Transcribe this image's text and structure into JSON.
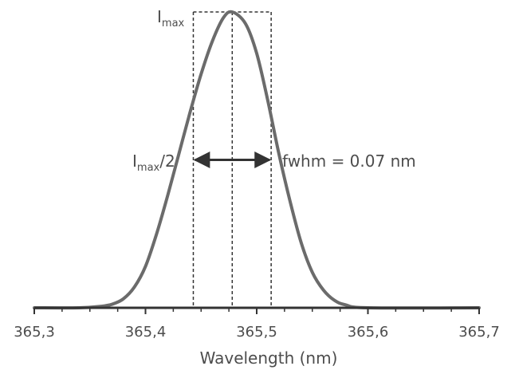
{
  "chart_data": {
    "type": "line",
    "title": "",
    "xlabel": "Wavelength (nm)",
    "ylabel": "",
    "xlim": [
      365.3,
      365.7
    ],
    "ylim": [
      0,
      1
    ],
    "x_ticks": [
      "365,3",
      "365,4",
      "365,5",
      "365,6",
      "365,7"
    ],
    "x_tick_values": [
      365.3,
      365.4,
      365.5,
      365.6,
      365.7
    ],
    "series": [
      {
        "x": [
          365.3,
          365.34,
          365.36,
          365.37,
          365.38,
          365.39,
          365.4,
          365.41,
          365.42,
          365.43,
          365.44,
          365.45,
          365.46,
          365.47,
          365.478,
          365.49,
          365.5,
          365.51,
          365.52,
          365.53,
          365.54,
          365.55,
          365.56,
          365.57,
          365.58,
          365.6,
          365.7
        ],
        "y": [
          0.0,
          0.0,
          0.005,
          0.012,
          0.03,
          0.07,
          0.14,
          0.25,
          0.38,
          0.52,
          0.66,
          0.79,
          0.9,
          0.98,
          1.0,
          0.96,
          0.86,
          0.7,
          0.52,
          0.36,
          0.22,
          0.12,
          0.06,
          0.025,
          0.01,
          0.0,
          0.0
        ],
        "color": "#6b6b6b"
      }
    ],
    "peak_x": 365.478,
    "half_max_left": 365.443,
    "half_max_right": 365.513,
    "annotations": {
      "imax_main": "I",
      "imax_sub": "max",
      "half_main": "I",
      "half_sub": "max",
      "half_suffix": "/2",
      "fwhm": "fwhm = 0.07 nm"
    },
    "grid": false,
    "legend": "none",
    "colors": {
      "curve": "#6b6b6b",
      "axis": "#333333",
      "dashed": "#333333",
      "arrow": "#333333"
    }
  }
}
